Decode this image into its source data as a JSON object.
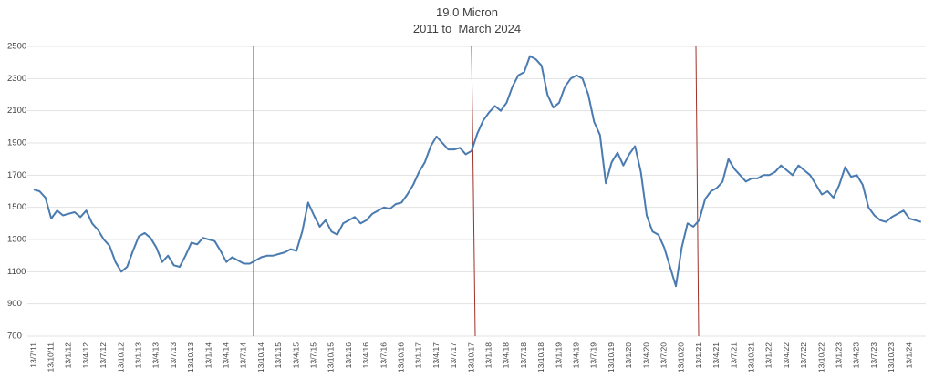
{
  "chart_data": {
    "type": "line",
    "title": "19.0 Micron",
    "subtitle": "2011 to  March 2024",
    "categories": [
      "13/7/11",
      null,
      null,
      "13/10/11",
      null,
      null,
      "13/1/12",
      null,
      null,
      "13/4/12",
      null,
      null,
      "13/7/12",
      null,
      null,
      "13/10/12",
      null,
      null,
      "13/1/13",
      null,
      null,
      "13/4/13",
      null,
      null,
      "13/7/13",
      null,
      null,
      "13/10/13",
      null,
      null,
      "13/1/14",
      null,
      null,
      "13/4/14",
      null,
      null,
      "13/7/14",
      null,
      null,
      "13/10/14",
      null,
      null,
      "13/1/15",
      null,
      null,
      "13/4/15",
      null,
      null,
      "13/7/15",
      null,
      null,
      "13/10/15",
      null,
      null,
      "13/1/16",
      null,
      null,
      "13/4/16",
      null,
      null,
      "13/7/16",
      null,
      null,
      "13/10/16",
      null,
      null,
      "13/1/17",
      null,
      null,
      "13/4/17",
      null,
      null,
      "13/7/17",
      null,
      null,
      "13/10/17",
      null,
      null,
      "13/1/18",
      null,
      null,
      "13/4/18",
      null,
      null,
      "13/7/18",
      null,
      null,
      "13/10/18",
      null,
      null,
      "13/1/19",
      null,
      null,
      "13/4/19",
      null,
      null,
      "13/7/19",
      null,
      null,
      "13/10/19",
      null,
      null,
      "13/1/20",
      null,
      null,
      "13/4/20",
      null,
      null,
      "13/7/20",
      null,
      null,
      "13/10/20",
      null,
      null,
      "13/1/21",
      null,
      null,
      "13/4/21",
      null,
      null,
      "13/7/21",
      null,
      null,
      "13/10/21",
      null,
      null,
      "13/1/22",
      null,
      null,
      "13/4/22",
      null,
      null,
      "13/7/22",
      null,
      null,
      "13/10/22",
      null,
      null,
      "13/1/23",
      null,
      null,
      "13/4/23",
      null,
      null,
      "13/7/23",
      null,
      null,
      "13/10/23",
      null,
      null,
      "13/1/24",
      null,
      null
    ],
    "series": [
      {
        "name": "19.0 Micron",
        "color": "#4a7bb0",
        "values": [
          1610,
          1600,
          1560,
          1430,
          1480,
          1450,
          1460,
          1470,
          1440,
          1480,
          1400,
          1360,
          1300,
          1260,
          1160,
          1100,
          1130,
          1230,
          1320,
          1340,
          1310,
          1250,
          1160,
          1200,
          1140,
          1130,
          1200,
          1280,
          1270,
          1310,
          1300,
          1290,
          1230,
          1160,
          1190,
          1170,
          1150,
          1150,
          1170,
          1190,
          1200,
          1200,
          1210,
          1220,
          1240,
          1230,
          1350,
          1530,
          1450,
          1380,
          1420,
          1350,
          1330,
          1400,
          1420,
          1440,
          1400,
          1420,
          1460,
          1480,
          1500,
          1490,
          1520,
          1530,
          1580,
          1640,
          1720,
          1780,
          1880,
          1940,
          1900,
          1860,
          1860,
          1870,
          1830,
          1850,
          1960,
          2040,
          2090,
          2130,
          2100,
          2150,
          2250,
          2320,
          2340,
          2440,
          2420,
          2380,
          2200,
          2120,
          2150,
          2250,
          2300,
          2320,
          2300,
          2200,
          2030,
          1950,
          1650,
          1780,
          1840,
          1760,
          1830,
          1880,
          1720,
          1450,
          1350,
          1330,
          1250,
          1130,
          1010,
          1250,
          1400,
          1380,
          1420,
          1550,
          1600,
          1620,
          1660,
          1800,
          1740,
          1700,
          1660,
          1680,
          1680,
          1700,
          1700,
          1720,
          1760,
          1730,
          1700,
          1760,
          1730,
          1700,
          1640,
          1580,
          1600,
          1560,
          1640,
          1750,
          1690,
          1700,
          1640,
          1500,
          1450,
          1420,
          1410,
          1440,
          1460,
          1480,
          1430,
          1420,
          1410
        ]
      }
    ],
    "ylim": [
      700,
      2500
    ],
    "yticks": [
      700,
      900,
      1100,
      1300,
      1500,
      1700,
      1900,
      2100,
      2300,
      2500
    ],
    "grid": true
  }
}
